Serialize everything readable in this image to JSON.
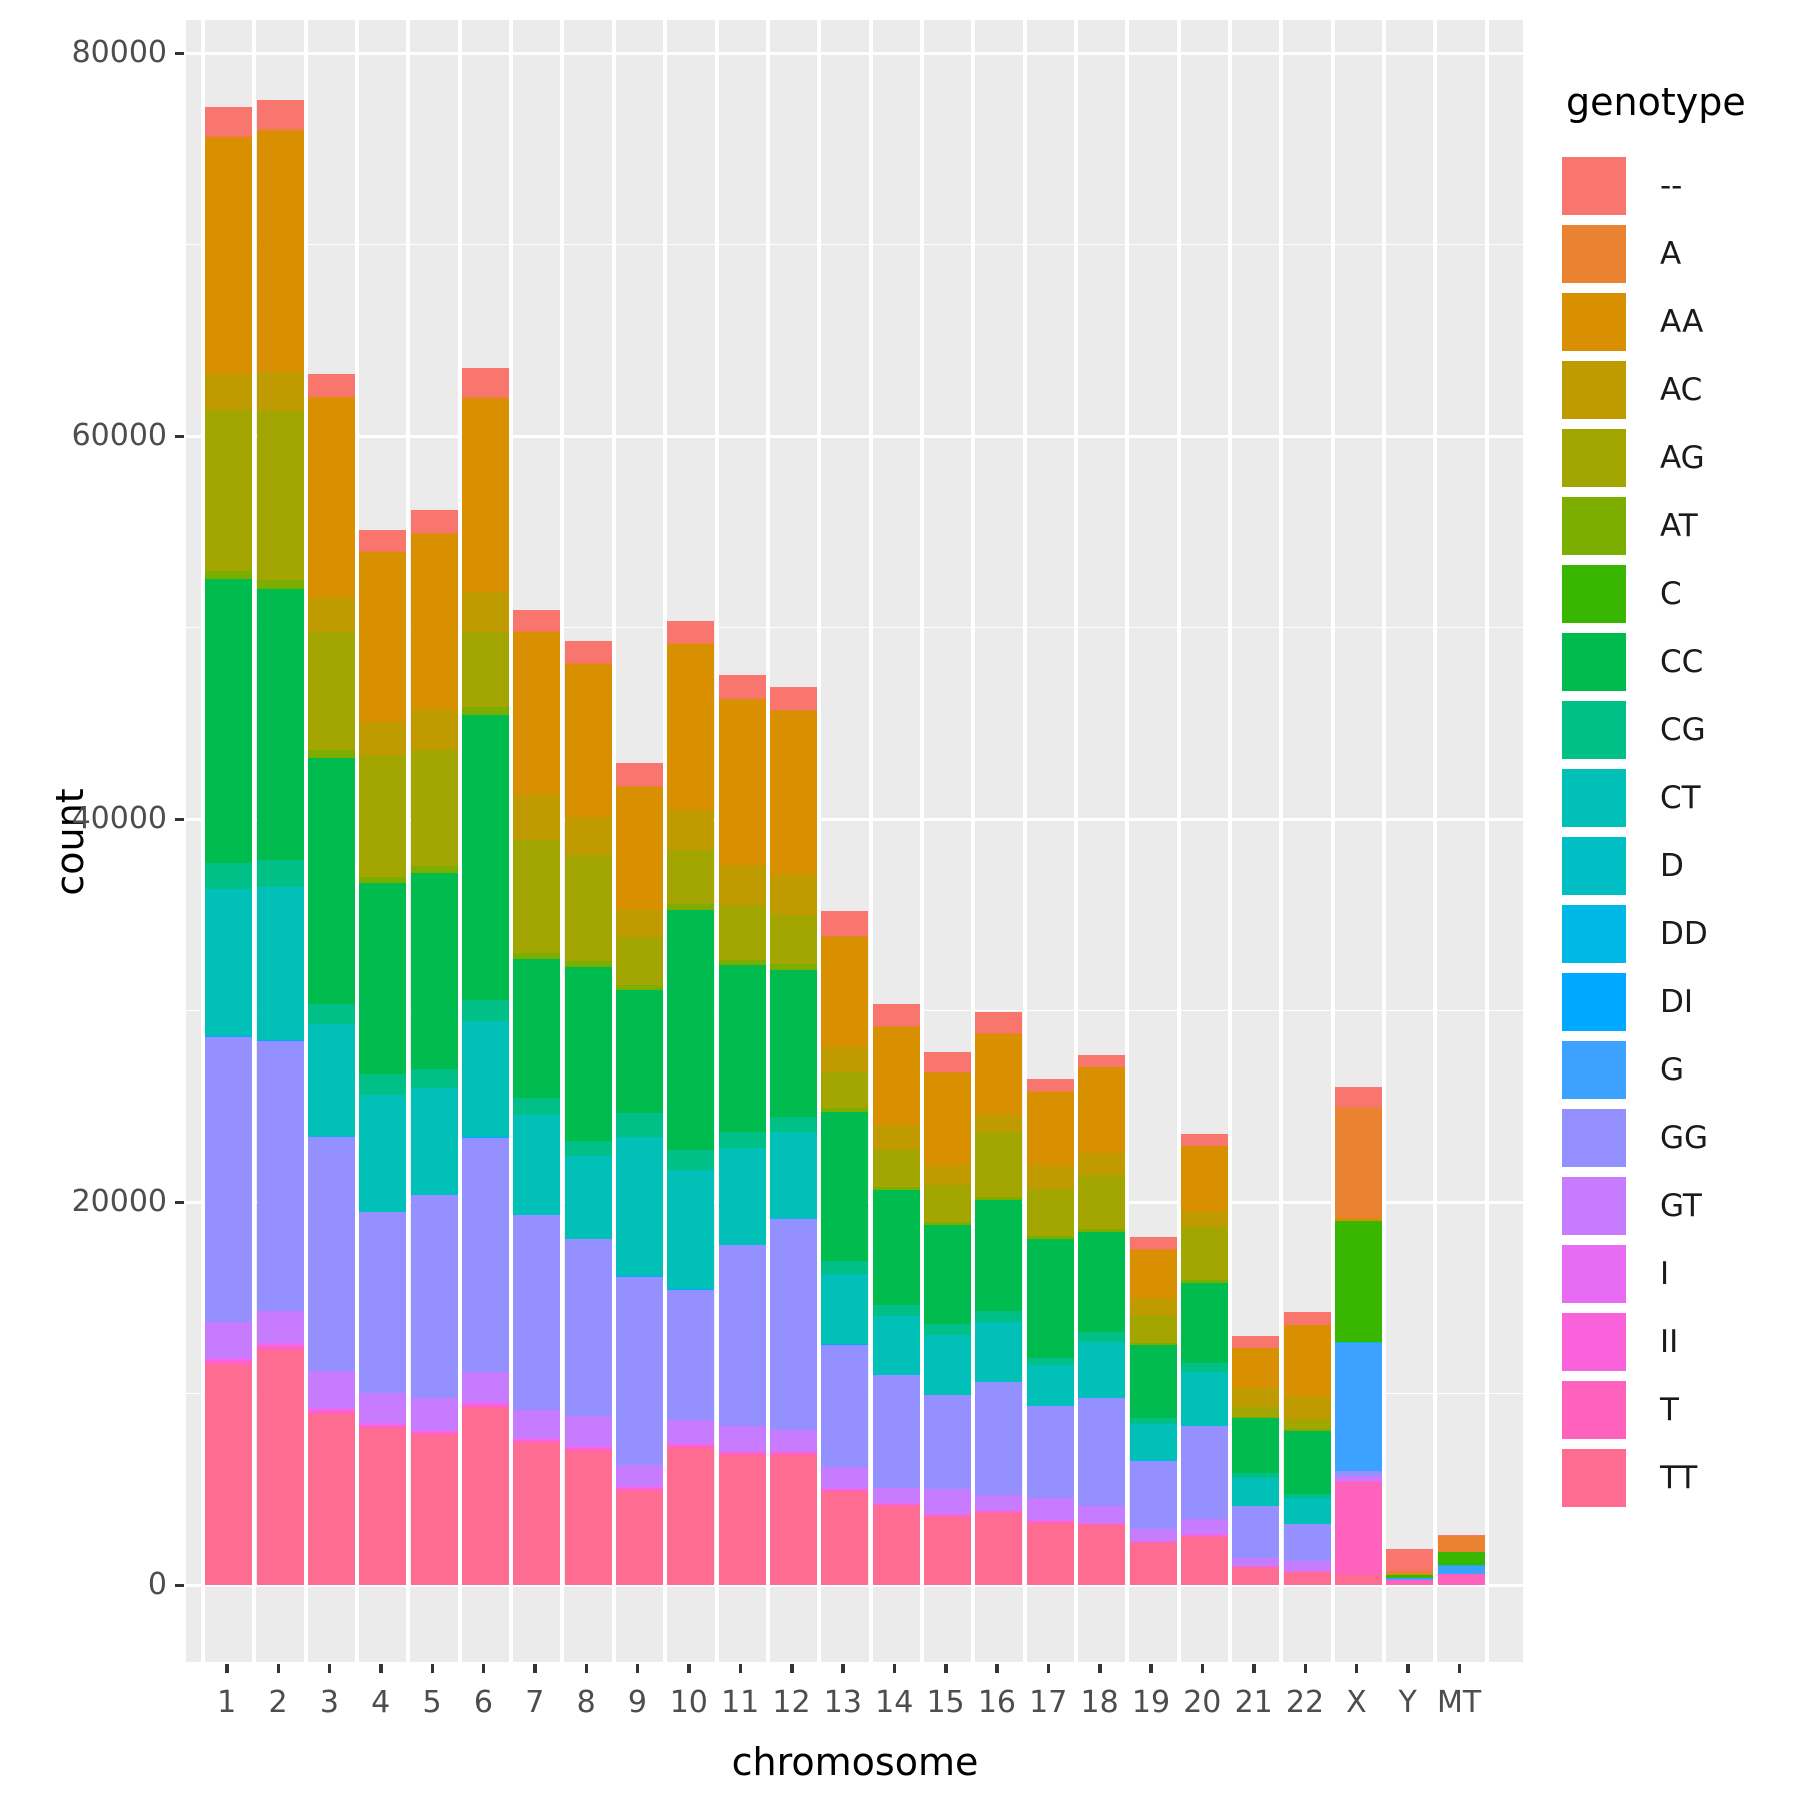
{
  "chart_data": {
    "type": "bar",
    "stacked": true,
    "title": "",
    "xlabel": "chromosome",
    "ylabel": "count",
    "legend_title": "genotype",
    "legend_position": "right",
    "grid": true,
    "panel_background": "#EBEBEB",
    "gridline_color": "#FFFFFF",
    "ylim": [
      0,
      80000
    ],
    "yticks": [
      0,
      20000,
      40000,
      60000,
      80000
    ],
    "ytick_labels": [
      "0",
      "20000",
      "40000",
      "60000",
      "80000"
    ],
    "categories": [
      "1",
      "2",
      "3",
      "4",
      "5",
      "6",
      "7",
      "8",
      "9",
      "10",
      "11",
      "12",
      "13",
      "14",
      "15",
      "16",
      "17",
      "18",
      "19",
      "20",
      "21",
      "22",
      "X",
      "Y",
      "MT"
    ],
    "series": [
      {
        "name": "--",
        "color": "#F8766D",
        "values": [
          1520,
          1520,
          1150,
          1100,
          1150,
          1520,
          1100,
          1150,
          1200,
          1150,
          1200,
          1200,
          1310,
          1150,
          1050,
          1100,
          630,
          630,
          630,
          630,
          630,
          680,
          1050,
          1150,
          60
        ]
      },
      {
        "name": "A",
        "color": "#EA8331",
        "values": [
          110,
          110,
          90,
          80,
          80,
          90,
          75,
          70,
          60,
          75,
          70,
          70,
          50,
          45,
          40,
          45,
          38,
          40,
          28,
          33,
          18,
          20,
          5800,
          150,
          800
        ]
      },
      {
        "name": "AA",
        "color": "#D89000",
        "values": [
          12300,
          12570,
          10420,
          8850,
          9160,
          10110,
          8480,
          7960,
          6390,
          8640,
          8640,
          8535,
          5760,
          5130,
          4820,
          4240,
          3820,
          4450,
          2510,
          3400,
          2095,
          3700,
          180,
          60,
          40
        ]
      },
      {
        "name": "AC",
        "color": "#C09B00",
        "values": [
          1885,
          2040,
          1830,
          1730,
          2095,
          2095,
          2360,
          1990,
          1410,
          2095,
          2095,
          2095,
          1310,
          1310,
          1050,
          890,
          1260,
          1150,
          890,
          790,
          995,
          1200,
          0,
          0,
          0
        ]
      },
      {
        "name": "AG",
        "color": "#A3A500",
        "values": [
          8390,
          8805,
          6160,
          6370,
          6105,
          3910,
          5925,
          5565,
          2525,
          2840,
          2855,
          2600,
          1885,
          1915,
          1930,
          3380,
          2460,
          2815,
          1460,
          2790,
          495,
          545,
          0,
          0,
          0
        ]
      },
      {
        "name": "AT",
        "color": "#7CAE00",
        "values": [
          460,
          465,
          380,
          330,
          335,
          380,
          305,
          295,
          255,
          300,
          285,
          280,
          210,
          180,
          165,
          180,
          160,
          165,
          110,
          140,
          80,
          85,
          0,
          0,
          0
        ]
      },
      {
        "name": "C",
        "color": "#39B600",
        "values": [
          0,
          0,
          0,
          0,
          0,
          0,
          0,
          0,
          0,
          0,
          0,
          0,
          0,
          0,
          0,
          0,
          0,
          0,
          0,
          0,
          0,
          0,
          6300,
          120,
          680
        ]
      },
      {
        "name": "CC",
        "color": "#00BB4E",
        "values": [
          14820,
          14190,
          12880,
          10000,
          10260,
          14920,
          7230,
          9110,
          6440,
          12510,
          8690,
          7700,
          7800,
          6020,
          5180,
          5810,
          6230,
          5240,
          3820,
          4190,
          2830,
          3300,
          0,
          0,
          0
        ]
      },
      {
        "name": "CG",
        "color": "#00C087",
        "values": [
          1340,
          1400,
          1030,
          1070,
          975,
          1060,
          910,
          755,
          1270,
          1085,
          880,
          785,
          645,
          540,
          550,
          550,
          370,
          510,
          330,
          490,
          260,
          235,
          0,
          0,
          0
        ]
      },
      {
        "name": "CT",
        "color": "#00C0B8",
        "values": [
          7610,
          7920,
          5830,
          6050,
          5515,
          6010,
          5160,
          4275,
          7210,
          6145,
          4980,
          4455,
          3645,
          3070,
          3120,
          3120,
          2090,
          2890,
          1870,
          2760,
          1470,
          1335,
          0,
          0,
          0
        ]
      },
      {
        "name": "D",
        "color": "#00BFC4",
        "values": [
          60,
          60,
          50,
          45,
          45,
          50,
          42,
          40,
          35,
          42,
          40,
          40,
          30,
          26,
          24,
          26,
          22,
          24,
          16,
          20,
          10,
          12,
          40,
          8,
          10
        ]
      },
      {
        "name": "DD",
        "color": "#00B8E5",
        "values": [
          25,
          25,
          21,
          19,
          19,
          21,
          18,
          17,
          15,
          18,
          17,
          17,
          13,
          11,
          10,
          11,
          9,
          10,
          7,
          8,
          4,
          5,
          15,
          3,
          4
        ]
      },
      {
        "name": "DI",
        "color": "#00A9FF",
        "values": [
          30,
          30,
          25,
          23,
          23,
          25,
          21,
          20,
          17,
          21,
          20,
          20,
          15,
          13,
          12,
          13,
          11,
          12,
          8,
          10,
          5,
          6,
          20,
          4,
          5
        ]
      },
      {
        "name": "G",
        "color": "#3DA1FF",
        "values": [
          0,
          0,
          0,
          0,
          0,
          0,
          0,
          0,
          0,
          0,
          0,
          0,
          0,
          0,
          0,
          0,
          0,
          0,
          0,
          0,
          0,
          0,
          6650,
          120,
          430
        ]
      },
      {
        "name": "GG",
        "color": "#9590FF",
        "values": [
          14870,
          14080,
          12200,
          9420,
          10580,
          12250,
          10160,
          9220,
          9840,
          6810,
          9420,
          11000,
          6390,
          5860,
          4870,
          5860,
          4820,
          5660,
          3560,
          4870,
          2720,
          1900,
          280,
          0,
          0
        ]
      },
      {
        "name": "GT",
        "color": "#C77CFF",
        "values": [
          1885,
          1680,
          1940,
          1570,
          1680,
          1570,
          1470,
          1570,
          1100,
          1200,
          1310,
          1100,
          1100,
          790,
          1310,
          790,
          1150,
          840,
          630,
          790,
          420,
          520,
          260,
          0,
          0
        ]
      },
      {
        "name": "I",
        "color": "#E76BF3",
        "values": [
          140,
          140,
          120,
          110,
          110,
          120,
          100,
          100,
          90,
          100,
          95,
          95,
          75,
          65,
          60,
          65,
          55,
          60,
          40,
          50,
          25,
          30,
          20,
          5,
          5
        ]
      },
      {
        "name": "II",
        "color": "#FA62DB",
        "values": [
          70,
          70,
          60,
          55,
          55,
          60,
          50,
          50,
          45,
          50,
          48,
          48,
          38,
          33,
          30,
          33,
          28,
          30,
          20,
          25,
          13,
          15,
          10,
          3,
          3
        ]
      },
      {
        "name": "T",
        "color": "#FF62BC",
        "values": [
          150,
          150,
          130,
          120,
          120,
          130,
          110,
          110,
          95,
          110,
          100,
          100,
          80,
          70,
          65,
          70,
          60,
          65,
          45,
          55,
          25,
          30,
          4900,
          180,
          570
        ]
      },
      {
        "name": "TT",
        "color": "#FF6C91",
        "values": [
          11515,
          12295,
          8930,
          8180,
          7810,
          9240,
          7420,
          7010,
          4930,
          7160,
          6770,
          6770,
          4870,
          4130,
          3570,
          3760,
          3230,
          3110,
          2195,
          2520,
          925,
          670,
          500,
          60,
          0
        ]
      }
    ]
  }
}
